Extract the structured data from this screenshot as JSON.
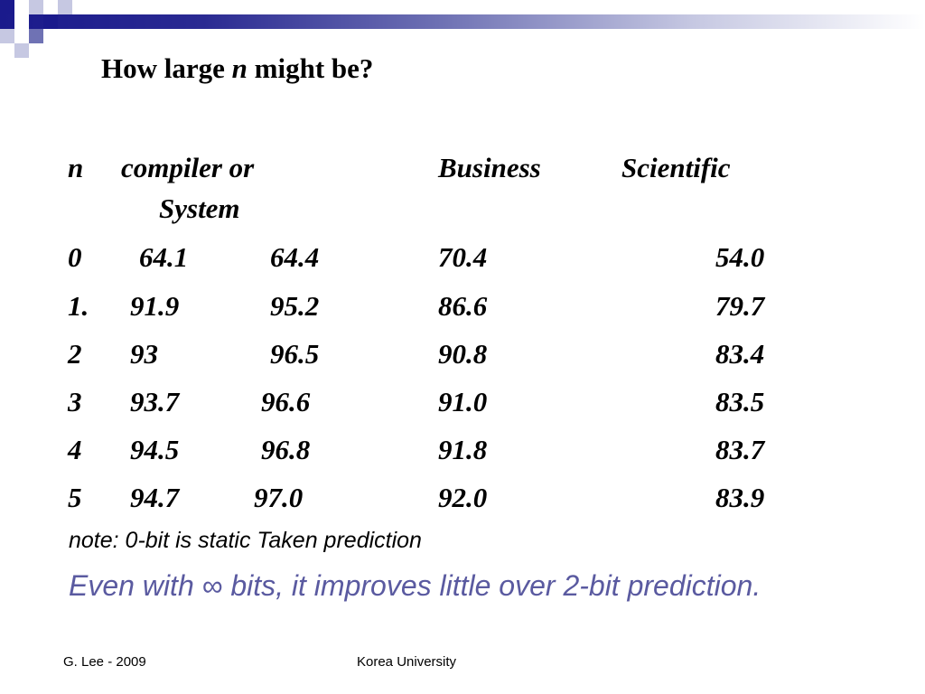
{
  "colors": {
    "band_dark": "#1a1a8c",
    "band_mid": "#6f72b4",
    "band_light": "#c6c8e2",
    "summary_text": "#5a5aa0"
  },
  "slide": {
    "title_pre": "How large ",
    "title_var": "n",
    "title_post": " might be?"
  },
  "table": {
    "headers": {
      "n": "n",
      "compiler_line1": "compiler or",
      "compiler_line2": "System",
      "business": "Business",
      "scientific": "Scientific"
    },
    "rows": [
      {
        "n": "0",
        "compiler": "64.1",
        "system": "64.4",
        "business": "70.4",
        "scientific": "54.0"
      },
      {
        "n": "1.",
        "compiler": "91.9",
        "system": "95.2",
        "business": "86.6",
        "scientific": "79.7"
      },
      {
        "n": "2",
        "compiler": "93",
        "system": "96.5",
        "business": "90.8",
        "scientific": "83.4"
      },
      {
        "n": "3",
        "compiler": "93.7",
        "system": "96.6",
        "business": "91.0",
        "scientific": "83.5"
      },
      {
        "n": "4",
        "compiler": "94.5",
        "system": "96.8",
        "business": "91.8",
        "scientific": "83.7"
      },
      {
        "n": "5",
        "compiler": "94.7",
        "system": "97.0",
        "business": "92.0",
        "scientific": "83.9"
      }
    ]
  },
  "note": "note: 0-bit is static Taken prediction",
  "summary": "Even with ∞ bits, it improves little over 2-bit prediction.",
  "footer": {
    "left": "G. Lee - 2009",
    "center": "Korea University"
  }
}
